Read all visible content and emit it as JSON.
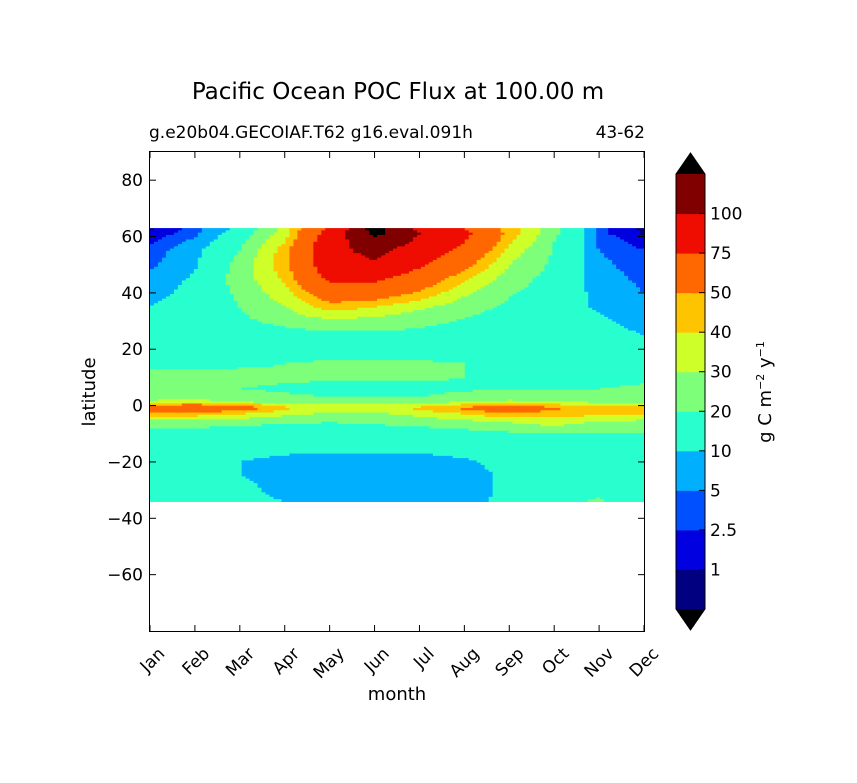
{
  "chart_data": {
    "type": "heatmap",
    "title": "Pacific Ocean POC Flux at 100.00 m",
    "subtitle_left": "g.e20b04.GECOIAF.T62 g16.eval.091h",
    "subtitle_right": "43-62",
    "xlabel": "month",
    "ylabel": "latitude",
    "x_ticks": [
      "Jan",
      "Feb",
      "Mar",
      "Apr",
      "May",
      "Jun",
      "Jul",
      "Aug",
      "Sep",
      "Oct",
      "Nov",
      "Dec"
    ],
    "y_ticks": [
      80,
      60,
      40,
      20,
      0,
      -20,
      -40,
      -60
    ],
    "y_tick_labels": [
      "80",
      "60",
      "40",
      "20",
      "0",
      "−20",
      "−40",
      "−60"
    ],
    "ylim": [
      -80,
      90
    ],
    "data_lat_range": [
      -34,
      63
    ],
    "colorbar": {
      "label_main": "g C m",
      "label_exp1": "−2",
      "label_mid": " y",
      "label_exp2": "−1",
      "levels": [
        0,
        1,
        2.5,
        5,
        10,
        20,
        30,
        40,
        50,
        75,
        100,
        120
      ],
      "tick_labels": [
        "1",
        "2.5",
        "5",
        "10",
        "20",
        "30",
        "40",
        "50",
        "75",
        "100"
      ],
      "colors": [
        "#000080",
        "#0000e0",
        "#0050ff",
        "#00b0ff",
        "#29ffce",
        "#7dff7a",
        "#ceff29",
        "#ffc400",
        "#ff6800",
        "#ee0d00",
        "#800000"
      ],
      "under_color": "#000000",
      "over_color": "#000000"
    },
    "field": {
      "lat": [
        -34,
        -30,
        -25,
        -20,
        -15,
        -10,
        -6,
        -3,
        -1,
        0,
        1,
        3,
        6,
        10,
        15,
        20,
        25,
        30,
        35,
        40,
        45,
        50,
        55,
        58,
        61,
        63
      ],
      "months": [
        1,
        2,
        3,
        4,
        5,
        6,
        7,
        8,
        9,
        10,
        11,
        12
      ],
      "values": [
        [
          12,
          12,
          11,
          10,
          9,
          9,
          8,
          9,
          11,
          16,
          22,
          12
        ],
        [
          13,
          12,
          11,
          9,
          8,
          8,
          8,
          8,
          11,
          14,
          16,
          13
        ],
        [
          13,
          12,
          10,
          9,
          8,
          7,
          7,
          8,
          11,
          13,
          14,
          13
        ],
        [
          14,
          13,
          10,
          8,
          7,
          7,
          7,
          9,
          12,
          13,
          14,
          14
        ],
        [
          15,
          14,
          13,
          12,
          12,
          12,
          12,
          13,
          14,
          14,
          15,
          15
        ],
        [
          16,
          16,
          15,
          15,
          15,
          15,
          15,
          16,
          18,
          19,
          20,
          19
        ],
        [
          25,
          24,
          22,
          21,
          20,
          21,
          23,
          26,
          30,
          35,
          28,
          26
        ],
        [
          45,
          45,
          40,
          32,
          28,
          28,
          33,
          40,
          48,
          45,
          42,
          42
        ],
        [
          60,
          62,
          58,
          42,
          35,
          36,
          42,
          52,
          62,
          52,
          45,
          45
        ],
        [
          55,
          58,
          52,
          38,
          32,
          33,
          38,
          45,
          54,
          45,
          40,
          42
        ],
        [
          35,
          38,
          32,
          28,
          27,
          27,
          28,
          32,
          36,
          33,
          30,
          30
        ],
        [
          24,
          24,
          22,
          21,
          20,
          20,
          20,
          22,
          24,
          23,
          22,
          22
        ],
        [
          21,
          21,
          20,
          19,
          18,
          18,
          18,
          19,
          20,
          20,
          20,
          21
        ],
        [
          23,
          23,
          22,
          21,
          21,
          21,
          21,
          20,
          18,
          17,
          17,
          19
        ],
        [
          17,
          18,
          19,
          20,
          21,
          21,
          21,
          20,
          18,
          17,
          17,
          17
        ],
        [
          15,
          15,
          15,
          16,
          16,
          16,
          16,
          16,
          15,
          14,
          14,
          14
        ],
        [
          13,
          14,
          15,
          16,
          17,
          18,
          17,
          16,
          15,
          14,
          12,
          10
        ],
        [
          12,
          14,
          18,
          23,
          28,
          26,
          23,
          19,
          16,
          14,
          11,
          8
        ],
        [
          10,
          13,
          20,
          30,
          45,
          40,
          32,
          24,
          18,
          14,
          9,
          6
        ],
        [
          8,
          12,
          22,
          36,
          62,
          60,
          48,
          32,
          21,
          15,
          8,
          5
        ],
        [
          6,
          11,
          24,
          42,
          80,
          80,
          62,
          42,
          25,
          16,
          7,
          4
        ],
        [
          4,
          9,
          23,
          46,
          90,
          98,
          80,
          55,
          30,
          18,
          6,
          3
        ],
        [
          3,
          8,
          20,
          45,
          95,
          105,
          92,
          68,
          36,
          19,
          5,
          2.5
        ],
        [
          2,
          6,
          17,
          40,
          92,
          112,
          96,
          76,
          42,
          20,
          4,
          1.5
        ],
        [
          1,
          4,
          14,
          35,
          85,
          125,
          100,
          80,
          45,
          22,
          3,
          0.8
        ],
        [
          0.8,
          3,
          12,
          33,
          80,
          130,
          95,
          75,
          45,
          22,
          3,
          0.6
        ]
      ]
    }
  }
}
